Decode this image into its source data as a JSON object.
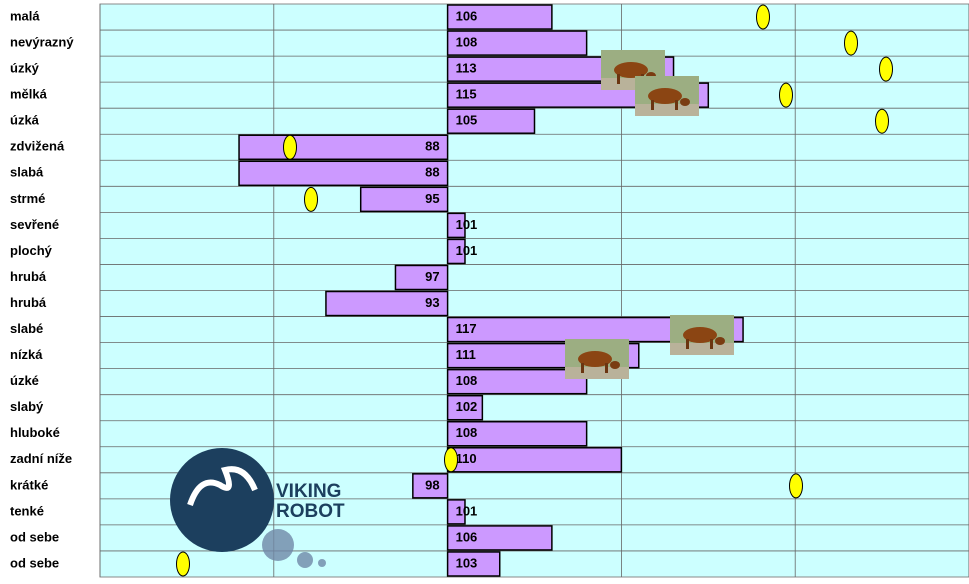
{
  "chart_data": {
    "type": "bar",
    "orientation": "horizontal",
    "base": 100,
    "categories": [
      "malá",
      "nevýrazný",
      "úzký",
      "mělká",
      "úzká",
      "zdvižená",
      "slabá",
      "strmé",
      "sevřené",
      "plochý",
      "hrubá",
      "hrubá",
      "slabé",
      "nízká",
      "úzké",
      "slabý",
      "hluboké",
      "zadní níže",
      "krátké",
      "tenké",
      "od sebe",
      "od sebe"
    ],
    "values": [
      106,
      108,
      113,
      115,
      105,
      88,
      88,
      95,
      101,
      101,
      97,
      93,
      117,
      111,
      108,
      102,
      108,
      110,
      98,
      101,
      106,
      103
    ],
    "color": "#cc99ff",
    "background": "#ccffff",
    "xlim": [
      80,
      130
    ],
    "xticks": [
      80,
      90,
      100,
      110,
      120,
      130
    ],
    "grid": true
  },
  "logo": {
    "line1": "VIKING",
    "line2": "ROBOT"
  }
}
